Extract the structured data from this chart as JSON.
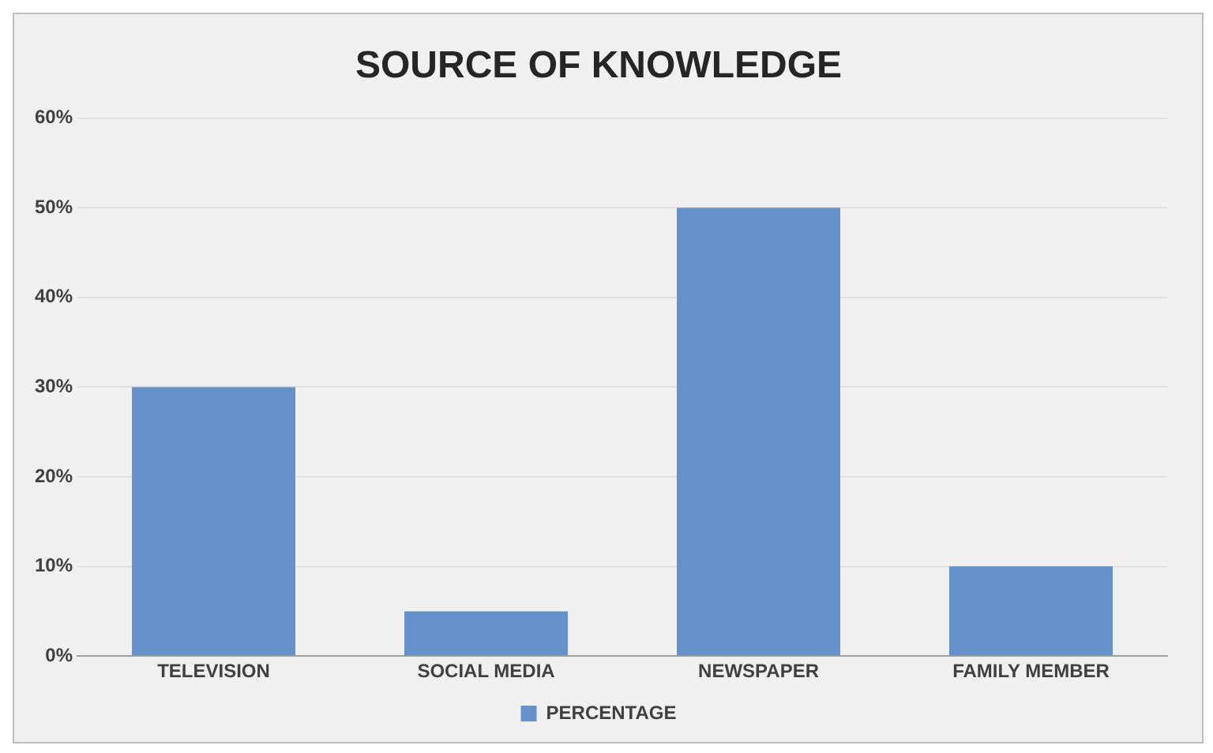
{
  "chart_data": {
    "type": "bar",
    "title": "SOURCE OF KNOWLEDGE",
    "categories": [
      "TELEVISION",
      "SOCIAL MEDIA",
      "NEWSPAPER",
      "FAMILY MEMBER"
    ],
    "series": [
      {
        "name": "PERCENTAGE",
        "color": "#6491c9",
        "values": [
          30,
          5,
          50,
          10
        ]
      }
    ],
    "ylim": [
      0,
      60
    ],
    "yticks": [
      {
        "value": 0,
        "label": "0%"
      },
      {
        "value": 10,
        "label": "10%"
      },
      {
        "value": 20,
        "label": "20%"
      },
      {
        "value": 30,
        "label": "30%"
      },
      {
        "value": 40,
        "label": "40%"
      },
      {
        "value": 50,
        "label": "50%"
      },
      {
        "value": 60,
        "label": "60%"
      }
    ],
    "grid": "y",
    "legend": "bottom"
  }
}
